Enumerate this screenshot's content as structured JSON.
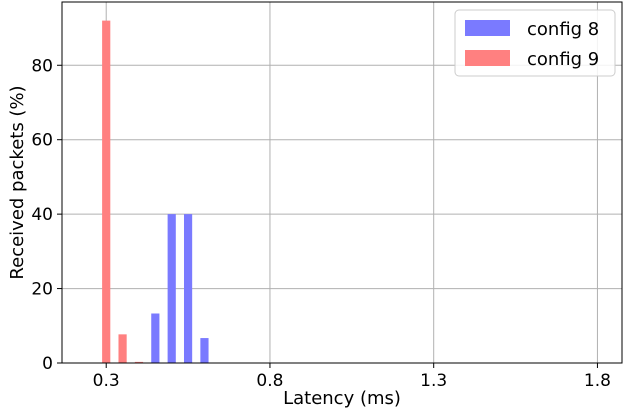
{
  "chart_data": {
    "type": "bar",
    "title": "",
    "xlabel": "Latency (ms)",
    "ylabel": "Received packets (%)",
    "xlim": [
      0.165,
      1.875
    ],
    "ylim": [
      0,
      97
    ],
    "xticks": [
      0.3,
      0.8,
      1.3,
      1.8
    ],
    "xtick_labels": [
      "0.3",
      "0.8",
      "1.3",
      "1.8"
    ],
    "yticks": [
      0,
      20,
      40,
      60,
      80
    ],
    "ytick_labels": [
      "0",
      "20",
      "40",
      "60",
      "80"
    ],
    "grid": true,
    "legend_position": "top-right",
    "bar_width": 0.025,
    "series": [
      {
        "name": "config 8",
        "color": "#7a7aff",
        "x": [
          0.45,
          0.5,
          0.55,
          0.6
        ],
        "values": [
          13.3,
          40,
          40,
          6.7
        ]
      },
      {
        "name": "config 9",
        "color": "#ff8080",
        "x": [
          0.3,
          0.35,
          0.4
        ],
        "values": [
          92,
          7.7,
          0.3
        ]
      }
    ]
  }
}
